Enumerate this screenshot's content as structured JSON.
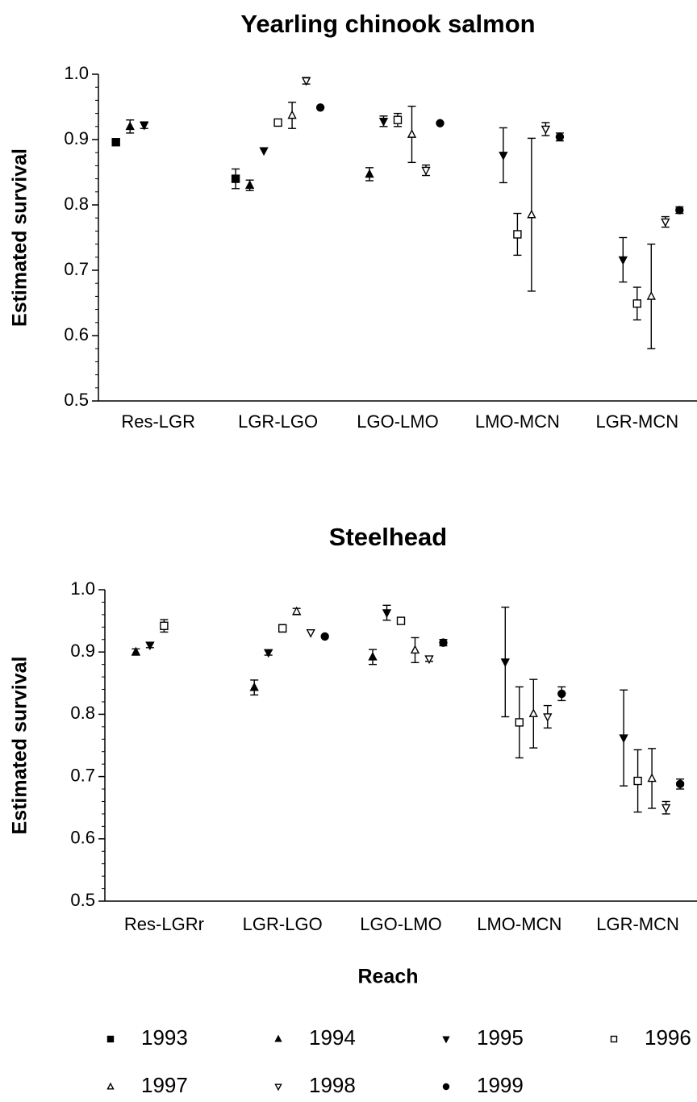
{
  "chart_data": [
    {
      "type": "errorbar",
      "title": "Yearling chinook salmon",
      "y_label": "Estimated survival",
      "categories": [
        "Res-LGR",
        "LGR-LGO",
        "LGO-LMO",
        "LMO-MCN",
        "LGR-MCN"
      ],
      "ylim": [
        0.5,
        1.0
      ],
      "yticks": [
        0.5,
        0.6,
        0.7,
        0.8,
        0.9,
        {
          "value": 1.0,
          "label": "1.0"
        }
      ],
      "series": [
        {
          "marker": "square-filled",
          "color": "#000000",
          "values": [
            0.896,
            0.84,
            null,
            null,
            null
          ],
          "errors": [
            0.004,
            0.015,
            null,
            null,
            null
          ]
        },
        {
          "marker": "triangle-up-filled",
          "color": "#000000",
          "values": [
            0.92,
            0.83,
            0.847,
            null,
            null
          ],
          "errors": [
            0.01,
            0.008,
            0.01,
            null,
            null
          ]
        },
        {
          "marker": "triangle-down-filled",
          "color": "#000000",
          "values": [
            0.922,
            0.883,
            0.928,
            0.876,
            0.716
          ],
          "errors": [
            0.005,
            null,
            0.008,
            0.042,
            0.034
          ]
        },
        {
          "marker": "square-open",
          "color": "#000000",
          "values": [
            null,
            0.926,
            0.93,
            0.755,
            0.649
          ],
          "errors": [
            null,
            0.004,
            0.01,
            0.032,
            0.025
          ]
        },
        {
          "marker": "triangle-up-open",
          "color": "#000000",
          "values": [
            null,
            0.937,
            0.908,
            0.785,
            0.66
          ],
          "errors": [
            null,
            0.02,
            0.043,
            0.117,
            0.08
          ]
        },
        {
          "marker": "triangle-down-open",
          "color": "#000000",
          "values": [
            null,
            0.99,
            0.853,
            0.916,
            0.774
          ],
          "errors": [
            null,
            0.005,
            0.008,
            0.01,
            0.008
          ]
        },
        {
          "marker": "circle-filled",
          "color": "#000000",
          "values": [
            null,
            0.949,
            0.925,
            0.904,
            0.792
          ],
          "errors": [
            null,
            null,
            null,
            0.006,
            0.005
          ]
        }
      ]
    },
    {
      "type": "errorbar",
      "title": "Steelhead",
      "y_label": "Estimated survival",
      "x_label": "Reach",
      "categories": [
        "Res-LGRr",
        "LGR-LGO",
        "LGO-LMO",
        "LMO-MCN",
        "LGR-MCN"
      ],
      "ylim": [
        0.5,
        1.0
      ],
      "yticks": [
        0.5,
        0.6,
        0.7,
        0.8,
        0.9,
        {
          "value": 1.0,
          "label": "1.0"
        }
      ],
      "series": [
        {
          "name": "1993",
          "marker": "square-filled",
          "color": "#000000",
          "values": [
            null,
            null,
            null,
            null,
            null
          ],
          "errors": [
            null,
            null,
            null,
            null,
            null
          ]
        },
        {
          "name": "1994",
          "marker": "triangle-up-filled",
          "color": "#000000",
          "values": [
            0.9,
            0.843,
            0.892,
            null,
            null
          ],
          "errors": [
            0.005,
            0.012,
            0.012,
            null,
            null
          ]
        },
        {
          "name": "1995",
          "marker": "triangle-down-filled",
          "color": "#000000",
          "values": [
            0.911,
            0.899,
            0.963,
            0.884,
            0.762
          ],
          "errors": [
            0.004,
            0.004,
            0.012,
            0.088,
            0.077
          ]
        },
        {
          "name": "1996",
          "marker": "square-open",
          "color": "#000000",
          "values": [
            0.942,
            0.938,
            0.95,
            0.787,
            0.693
          ],
          "errors": [
            0.01,
            0.006,
            null,
            0.057,
            0.05
          ]
        },
        {
          "name": "1997",
          "marker": "triangle-up-open",
          "color": "#000000",
          "values": [
            null,
            0.965,
            0.903,
            0.801,
            0.697
          ],
          "errors": [
            null,
            0.005,
            0.02,
            0.055,
            0.048
          ]
        },
        {
          "name": "1998",
          "marker": "triangle-down-open",
          "color": "#000000",
          "values": [
            null,
            0.931,
            0.889,
            0.796,
            0.65
          ],
          "errors": [
            null,
            null,
            0.004,
            0.018,
            0.01
          ]
        },
        {
          "name": "1999",
          "marker": "circle-filled",
          "color": "#000000",
          "values": [
            null,
            0.925,
            0.915,
            0.833,
            0.688
          ],
          "errors": [
            null,
            null,
            0.005,
            0.011,
            0.008
          ]
        }
      ]
    }
  ]
}
